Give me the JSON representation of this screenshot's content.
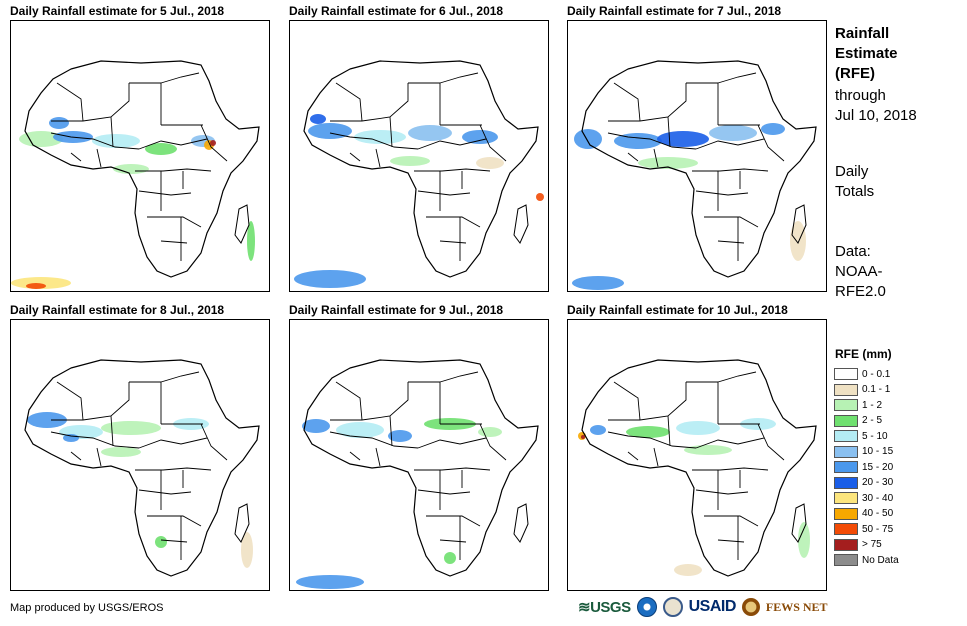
{
  "panels": [
    {
      "title": "Daily Rainfall estimate for 5 Jul., 2018",
      "rain": [
        {
          "level": 2,
          "x": 30,
          "y": 118,
          "rx": 22,
          "ry": 8
        },
        {
          "level": 6,
          "x": 62,
          "y": 116,
          "rx": 20,
          "ry": 6
        },
        {
          "level": 4,
          "x": 105,
          "y": 120,
          "rx": 24,
          "ry": 7
        },
        {
          "level": 3,
          "x": 150,
          "y": 128,
          "rx": 16,
          "ry": 6
        },
        {
          "level": 6,
          "x": 48,
          "y": 102,
          "rx": 10,
          "ry": 6
        },
        {
          "level": 5,
          "x": 192,
          "y": 120,
          "rx": 12,
          "ry": 6
        },
        {
          "level": 9,
          "x": 198,
          "y": 124,
          "rx": 5,
          "ry": 5
        },
        {
          "level": 11,
          "x": 202,
          "y": 122,
          "rx": 3,
          "ry": 3
        },
        {
          "level": 3,
          "x": 240,
          "y": 220,
          "rx": 4,
          "ry": 20
        },
        {
          "level": 8,
          "x": 30,
          "y": 262,
          "rx": 30,
          "ry": 6
        },
        {
          "level": 10,
          "x": 25,
          "y": 265,
          "rx": 10,
          "ry": 3
        },
        {
          "level": 2,
          "x": 120,
          "y": 148,
          "rx": 18,
          "ry": 5
        }
      ]
    },
    {
      "title": "Daily Rainfall estimate for 6 Jul., 2018",
      "rain": [
        {
          "level": 6,
          "x": 40,
          "y": 110,
          "rx": 22,
          "ry": 8
        },
        {
          "level": 7,
          "x": 28,
          "y": 98,
          "rx": 8,
          "ry": 5
        },
        {
          "level": 4,
          "x": 90,
          "y": 116,
          "rx": 26,
          "ry": 7
        },
        {
          "level": 5,
          "x": 140,
          "y": 112,
          "rx": 22,
          "ry": 8
        },
        {
          "level": 6,
          "x": 190,
          "y": 116,
          "rx": 18,
          "ry": 7
        },
        {
          "level": 2,
          "x": 120,
          "y": 140,
          "rx": 20,
          "ry": 5
        },
        {
          "level": 10,
          "x": 250,
          "y": 176,
          "rx": 4,
          "ry": 4
        },
        {
          "level": 6,
          "x": 40,
          "y": 258,
          "rx": 36,
          "ry": 9
        },
        {
          "level": 1,
          "x": 200,
          "y": 142,
          "rx": 14,
          "ry": 6
        }
      ]
    },
    {
      "title": "Daily Rainfall estimate for 7 Jul., 2018",
      "rain": [
        {
          "level": 6,
          "x": 20,
          "y": 118,
          "rx": 14,
          "ry": 10
        },
        {
          "level": 6,
          "x": 70,
          "y": 120,
          "rx": 24,
          "ry": 8
        },
        {
          "level": 7,
          "x": 115,
          "y": 118,
          "rx": 26,
          "ry": 8
        },
        {
          "level": 5,
          "x": 165,
          "y": 112,
          "rx": 24,
          "ry": 8
        },
        {
          "level": 6,
          "x": 205,
          "y": 108,
          "rx": 12,
          "ry": 6
        },
        {
          "level": 2,
          "x": 100,
          "y": 142,
          "rx": 30,
          "ry": 6
        },
        {
          "level": 6,
          "x": 30,
          "y": 262,
          "rx": 26,
          "ry": 7
        },
        {
          "level": 1,
          "x": 230,
          "y": 220,
          "rx": 8,
          "ry": 20
        }
      ]
    },
    {
      "title": "Daily Rainfall estimate for 8 Jul., 2018",
      "rain": [
        {
          "level": 6,
          "x": 36,
          "y": 100,
          "rx": 20,
          "ry": 8
        },
        {
          "level": 4,
          "x": 70,
          "y": 112,
          "rx": 22,
          "ry": 7
        },
        {
          "level": 2,
          "x": 120,
          "y": 108,
          "rx": 30,
          "ry": 7
        },
        {
          "level": 4,
          "x": 180,
          "y": 104,
          "rx": 18,
          "ry": 6
        },
        {
          "level": 6,
          "x": 60,
          "y": 118,
          "rx": 8,
          "ry": 4
        },
        {
          "level": 2,
          "x": 110,
          "y": 132,
          "rx": 20,
          "ry": 5
        },
        {
          "level": 3,
          "x": 150,
          "y": 222,
          "rx": 6,
          "ry": 6
        },
        {
          "level": 1,
          "x": 236,
          "y": 230,
          "rx": 6,
          "ry": 18
        }
      ]
    },
    {
      "title": "Daily Rainfall estimate for 9 Jul., 2018",
      "rain": [
        {
          "level": 6,
          "x": 26,
          "y": 106,
          "rx": 14,
          "ry": 7
        },
        {
          "level": 4,
          "x": 70,
          "y": 110,
          "rx": 24,
          "ry": 8
        },
        {
          "level": 6,
          "x": 110,
          "y": 116,
          "rx": 12,
          "ry": 6
        },
        {
          "level": 3,
          "x": 160,
          "y": 104,
          "rx": 26,
          "ry": 6
        },
        {
          "level": 2,
          "x": 200,
          "y": 112,
          "rx": 12,
          "ry": 5
        },
        {
          "level": 6,
          "x": 40,
          "y": 262,
          "rx": 34,
          "ry": 7
        },
        {
          "level": 3,
          "x": 160,
          "y": 238,
          "rx": 6,
          "ry": 6
        }
      ]
    },
    {
      "title": "Daily Rainfall estimate for 10 Jul., 2018",
      "rain": [
        {
          "level": 9,
          "x": 14,
          "y": 116,
          "rx": 4,
          "ry": 4
        },
        {
          "level": 11,
          "x": 15,
          "y": 117,
          "rx": 2,
          "ry": 2
        },
        {
          "level": 6,
          "x": 30,
          "y": 110,
          "rx": 8,
          "ry": 5
        },
        {
          "level": 3,
          "x": 80,
          "y": 112,
          "rx": 22,
          "ry": 6
        },
        {
          "level": 4,
          "x": 130,
          "y": 108,
          "rx": 22,
          "ry": 7
        },
        {
          "level": 4,
          "x": 190,
          "y": 104,
          "rx": 18,
          "ry": 6
        },
        {
          "level": 2,
          "x": 140,
          "y": 130,
          "rx": 24,
          "ry": 5
        },
        {
          "level": 2,
          "x": 236,
          "y": 220,
          "rx": 6,
          "ry": 18
        },
        {
          "level": 1,
          "x": 120,
          "y": 250,
          "rx": 14,
          "ry": 6
        }
      ]
    }
  ],
  "sidebar": {
    "title": [
      "Rainfall",
      "Estimate",
      "(RFE)"
    ],
    "through": [
      "through",
      "Jul 10, 2018"
    ],
    "totals": [
      "Daily",
      "Totals"
    ],
    "data": [
      "Data:",
      "NOAA-",
      "RFE2.0"
    ]
  },
  "legend": {
    "title": "RFE (mm)",
    "items": [
      {
        "label": "0 - 0.1",
        "color": "#ffffff"
      },
      {
        "label": "0.1 - 1",
        "color": "#efe1c3"
      },
      {
        "label": "1 - 2",
        "color": "#b7f2b4"
      },
      {
        "label": "2 - 5",
        "color": "#6fe06f"
      },
      {
        "label": "5 - 10",
        "color": "#b4ecf4"
      },
      {
        "label": "10 - 15",
        "color": "#8ac0f0"
      },
      {
        "label": "15 - 20",
        "color": "#4b98ec"
      },
      {
        "label": "20 - 30",
        "color": "#1a5ee8"
      },
      {
        "label": "30 - 40",
        "color": "#fce57d"
      },
      {
        "label": "40 - 50",
        "color": "#f7a800"
      },
      {
        "label": "50 - 75",
        "color": "#f24b06"
      },
      {
        "label": "> 75",
        "color": "#a41e1e"
      },
      {
        "label": "No Data",
        "color": "#8c8c8c"
      }
    ]
  },
  "credit": "Map produced by USGS/EROS",
  "logos": {
    "usgs": "USGS",
    "usaid": "USAID",
    "fews": "FEWS NET"
  }
}
